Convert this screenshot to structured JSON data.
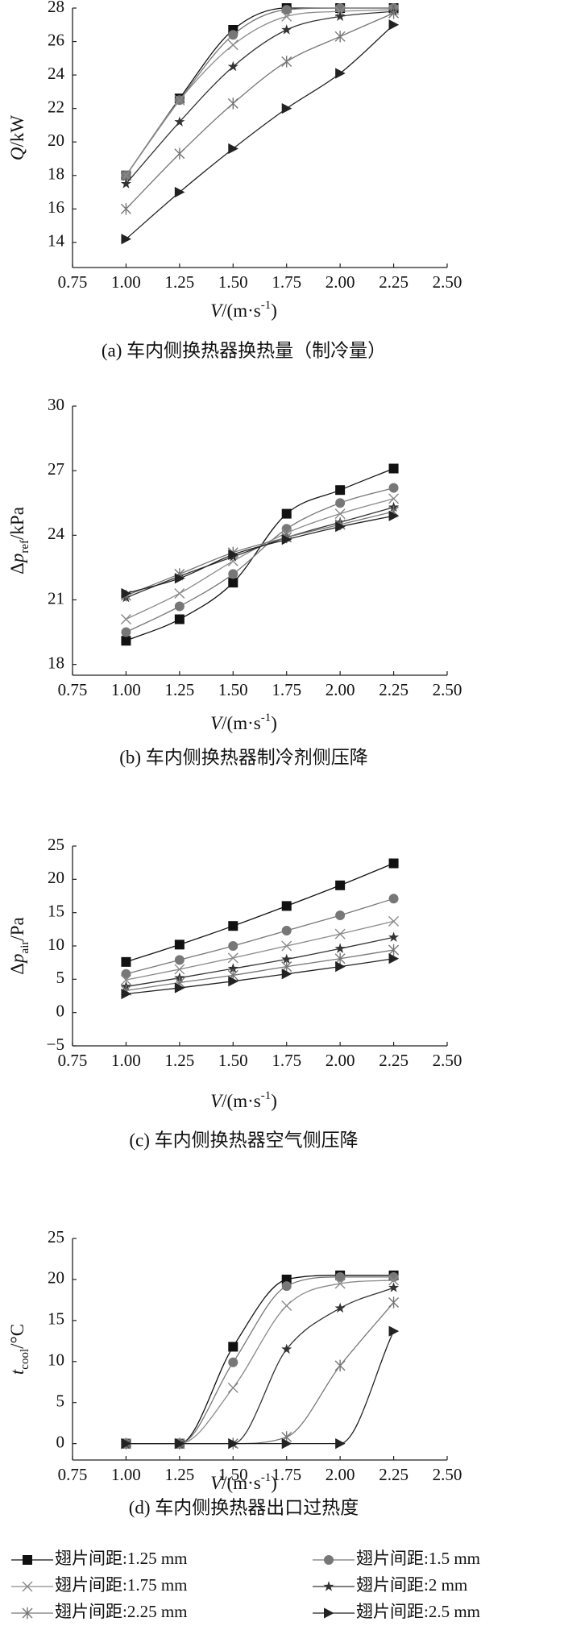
{
  "chart_data": [
    {
      "type": "line",
      "caption": "(a) 车内侧换热器换热量（制冷量）",
      "ylabel": [
        {
          "text": "Q",
          "style": "italic"
        },
        {
          "text": "/kW",
          "style": "normal"
        }
      ],
      "xlabel": [
        {
          "text": "V",
          "style": "italic"
        },
        {
          "text": "/(m·s",
          "style": "normal"
        },
        {
          "text": "-1",
          "style": "sup"
        },
        {
          "text": ")",
          "style": "normal"
        }
      ],
      "x": [
        1.0,
        1.25,
        1.5,
        1.75,
        2.0,
        2.25
      ],
      "xlim": [
        0.75,
        2.5
      ],
      "xticks": [
        0.75,
        {
          "value": 1,
          "label": "1.00"
        },
        1.25,
        {
          "value": 1.5,
          "label": "1.50"
        },
        1.75,
        {
          "value": 2,
          "label": "2.00"
        },
        2.25,
        {
          "value": 2.5,
          "label": "2.50"
        }
      ],
      "ylim": [
        12.5,
        28
      ],
      "yticks": [
        14,
        16,
        18,
        20,
        22,
        24,
        26,
        28
      ],
      "series": [
        {
          "values": [
            18.0,
            22.6,
            26.7,
            28.0,
            28.0,
            28.0
          ]
        },
        {
          "values": [
            18.0,
            22.5,
            26.4,
            27.9,
            28.0,
            28.0
          ]
        },
        {
          "values": [
            18.0,
            22.5,
            25.8,
            27.5,
            27.8,
            27.9
          ]
        },
        {
          "values": [
            17.5,
            21.2,
            24.5,
            26.7,
            27.5,
            27.8
          ]
        },
        {
          "values": [
            16.0,
            19.3,
            22.3,
            24.8,
            26.3,
            27.7
          ]
        },
        {
          "values": [
            14.2,
            17.0,
            19.6,
            22.0,
            24.1,
            27.0
          ]
        }
      ]
    },
    {
      "type": "line",
      "caption": "(b) 车内侧换热器制冷剂侧压降",
      "ylabel": [
        {
          "text": "Δ",
          "style": "normal"
        },
        {
          "text": "p",
          "style": "italic"
        },
        {
          "text": "ref",
          "style": "sub"
        },
        {
          "text": "/kPa",
          "style": "normal"
        }
      ],
      "xlabel": [
        {
          "text": "V",
          "style": "italic"
        },
        {
          "text": "/(m·s",
          "style": "normal"
        },
        {
          "text": "-1",
          "style": "sup"
        },
        {
          "text": ")",
          "style": "normal"
        }
      ],
      "x": [
        1.0,
        1.25,
        1.5,
        1.75,
        2.0,
        2.25
      ],
      "xlim": [
        0.75,
        2.5
      ],
      "xticks": [
        0.75,
        {
          "value": 1,
          "label": "1.00"
        },
        1.25,
        {
          "value": 1.5,
          "label": "1.50"
        },
        1.75,
        {
          "value": 2,
          "label": "2.00"
        },
        2.25,
        {
          "value": 2.5,
          "label": "2.50"
        }
      ],
      "ylim": [
        17.5,
        30
      ],
      "yticks": [
        18,
        21,
        24,
        27,
        30
      ],
      "series": [
        {
          "values": [
            19.1,
            20.1,
            21.8,
            25.0,
            26.1,
            27.1
          ]
        },
        {
          "values": [
            19.5,
            20.7,
            22.2,
            24.3,
            25.5,
            26.2
          ]
        },
        {
          "values": [
            20.1,
            21.3,
            22.8,
            24.1,
            25.0,
            25.7
          ]
        },
        {
          "values": [
            21.1,
            22.1,
            23.0,
            23.9,
            24.6,
            25.3
          ]
        },
        {
          "values": [
            21.2,
            22.2,
            23.2,
            23.9,
            24.5,
            25.1
          ]
        },
        {
          "values": [
            21.3,
            22.0,
            23.1,
            23.8,
            24.4,
            24.9
          ]
        }
      ]
    },
    {
      "type": "line",
      "caption": "(c) 车内侧换热器空气侧压降",
      "ylabel": [
        {
          "text": "Δ",
          "style": "normal"
        },
        {
          "text": "p",
          "style": "italic"
        },
        {
          "text": "air",
          "style": "sub"
        },
        {
          "text": "/Pa",
          "style": "normal"
        }
      ],
      "xlabel": [
        {
          "text": "V",
          "style": "italic"
        },
        {
          "text": "/(m·s",
          "style": "normal"
        },
        {
          "text": "-1",
          "style": "sup"
        },
        {
          "text": ")",
          "style": "normal"
        }
      ],
      "x": [
        1.0,
        1.25,
        1.5,
        1.75,
        2.0,
        2.25
      ],
      "xlim": [
        0.75,
        2.5
      ],
      "xticks": [
        0.75,
        {
          "value": 1,
          "label": "1.00"
        },
        1.25,
        {
          "value": 1.5,
          "label": "1.50"
        },
        1.75,
        {
          "value": 2,
          "label": "2.00"
        },
        2.25,
        {
          "value": 2.5,
          "label": "2.50"
        }
      ],
      "ylim": [
        -5,
        25
      ],
      "yticks": [
        {
          "value": -5,
          "label": "−5"
        },
        0,
        5,
        10,
        15,
        20,
        25
      ],
      "series": [
        {
          "values": [
            7.6,
            10.2,
            13.0,
            16.0,
            19.1,
            22.4
          ]
        },
        {
          "values": [
            5.8,
            7.9,
            10.0,
            12.3,
            14.6,
            17.1
          ]
        },
        {
          "values": [
            4.9,
            6.5,
            8.2,
            10.0,
            11.8,
            13.7
          ]
        },
        {
          "values": [
            3.9,
            5.2,
            6.6,
            8.0,
            9.6,
            11.3
          ]
        },
        {
          "values": [
            3.3,
            4.5,
            5.6,
            6.9,
            8.1,
            9.4
          ]
        },
        {
          "values": [
            2.8,
            3.7,
            4.7,
            5.8,
            6.9,
            8.1
          ]
        }
      ]
    },
    {
      "type": "line",
      "caption": "(d) 车内侧换热器出口过热度",
      "ylabel": [
        {
          "text": "t",
          "style": "italic"
        },
        {
          "text": "cool",
          "style": "sub"
        },
        {
          "text": "/°C",
          "style": "normal"
        }
      ],
      "xlabel": [
        {
          "text": "V",
          "style": "italic"
        },
        {
          "text": "/(m·s",
          "style": "normal"
        },
        {
          "text": "-1",
          "style": "sup"
        },
        {
          "text": ")",
          "style": "normal"
        }
      ],
      "x": [
        1.0,
        1.25,
        1.5,
        1.75,
        2.0,
        2.25
      ],
      "xlim": [
        0.75,
        2.5
      ],
      "xticks": [
        0.75,
        {
          "value": 1,
          "label": "1.00"
        },
        1.25,
        {
          "value": 1.5,
          "label": "1.50"
        },
        1.75,
        {
          "value": 2,
          "label": "2.00"
        },
        2.25,
        {
          "value": 2.5,
          "label": "2.50"
        }
      ],
      "ylim": [
        -2,
        25
      ],
      "yticks": [
        0,
        5,
        10,
        15,
        20,
        25
      ],
      "series": [
        {
          "values": [
            0,
            0,
            11.8,
            20.0,
            20.5,
            20.5
          ]
        },
        {
          "values": [
            0,
            0,
            9.9,
            19.2,
            20.3,
            20.3
          ]
        },
        {
          "values": [
            0,
            0,
            6.8,
            16.8,
            19.5,
            19.9
          ]
        },
        {
          "values": [
            0,
            0,
            0,
            11.5,
            16.5,
            19.0
          ]
        },
        {
          "values": [
            0,
            0,
            0,
            0.8,
            9.5,
            17.2
          ]
        },
        {
          "values": [
            0,
            0,
            0,
            0,
            0,
            13.7
          ]
        }
      ]
    }
  ],
  "legend": [
    {
      "name": "翅片间距:1.25 mm",
      "marker": "square",
      "color": "#111111"
    },
    {
      "name": "翅片间距:1.5 mm",
      "marker": "circle",
      "color": "#777777"
    },
    {
      "name": "翅片间距:1.75 mm",
      "marker": "cross",
      "color": "#8a8a8a"
    },
    {
      "name": "翅片间距:2 mm",
      "marker": "star",
      "color": "#333333"
    },
    {
      "name": "翅片间距:2.25 mm",
      "marker": "asterisk",
      "color": "#777777"
    },
    {
      "name": "翅片间距:2.5 mm",
      "marker": "triangle",
      "color": "#222222"
    }
  ]
}
